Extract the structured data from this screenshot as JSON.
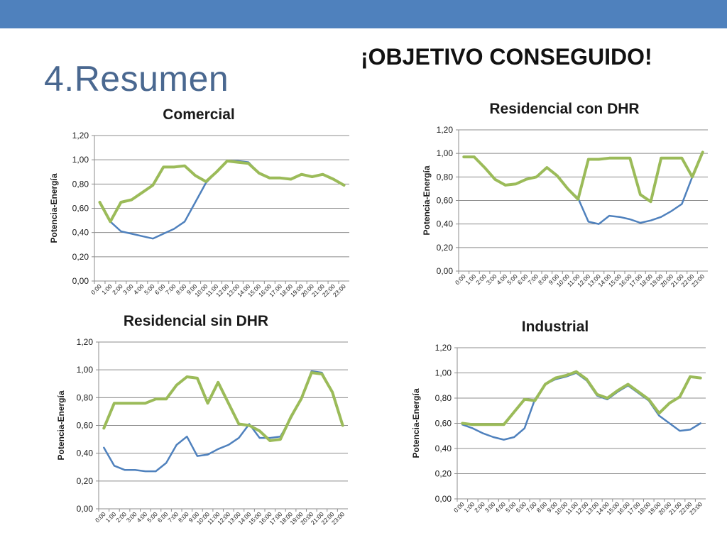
{
  "slide": {
    "title": "4.Resumen",
    "headline": "¡OBJETIVO CONSEGUIDO!"
  },
  "colors": {
    "header_bar": "#4f81bd",
    "series_blue": "#4f81bd",
    "series_green": "#9bbb59",
    "title_text": "#4a6890"
  },
  "chart_data": [
    {
      "id": "comercial",
      "type": "line",
      "title": "Comercial",
      "ylabel": "Potencia-Energía",
      "xlabel": "",
      "ylim": [
        0,
        1.2
      ],
      "yticks": [
        "0,00",
        "0,20",
        "0,40",
        "0,60",
        "0,80",
        "1,00",
        "1,20"
      ],
      "grid": true,
      "categories": [
        "0:00",
        "1:00",
        "2:00",
        "3:00",
        "4:00",
        "5:00",
        "6:00",
        "7:00",
        "8:00",
        "9:00",
        "10:00",
        "11:00",
        "12:00",
        "13:00",
        "14:00",
        "15:00",
        "16:00",
        "17:00",
        "18:00",
        "19:00",
        "20:00",
        "21:00",
        "22:00",
        "23:00"
      ],
      "series": [
        {
          "color": "#4f81bd",
          "values": [
            0.65,
            0.49,
            0.41,
            0.39,
            0.37,
            0.35,
            0.39,
            0.43,
            0.49,
            0.65,
            0.81,
            0.9,
            0.99,
            0.99,
            0.98,
            0.89,
            0.85,
            0.85,
            0.84,
            0.88,
            0.86,
            0.88,
            0.84,
            0.79
          ]
        },
        {
          "color": "#9bbb59",
          "values": [
            0.65,
            0.49,
            0.65,
            0.67,
            0.73,
            0.79,
            0.94,
            0.94,
            0.95,
            0.87,
            0.82,
            0.9,
            0.99,
            0.98,
            0.97,
            0.89,
            0.85,
            0.85,
            0.84,
            0.88,
            0.86,
            0.88,
            0.84,
            0.79
          ]
        }
      ]
    },
    {
      "id": "residencial-con-dhr",
      "type": "line",
      "title": "Residencial con DHR",
      "ylabel": "Potencia-Energía",
      "xlabel": "",
      "ylim": [
        0,
        1.2
      ],
      "yticks": [
        "0,00",
        "0,20",
        "0,40",
        "0,60",
        "0,80",
        "1,00",
        "1,20"
      ],
      "grid": true,
      "categories": [
        "0:00",
        "1:00",
        "2:00",
        "3:00",
        "4:00",
        "5:00",
        "6:00",
        "7:00",
        "8:00",
        "9:00",
        "10:00",
        "11:00",
        "12:00",
        "13:00",
        "14:00",
        "15:00",
        "16:00",
        "17:00",
        "18:00",
        "19:00",
        "20:00",
        "21:00",
        "22:00",
        "23:00"
      ],
      "series": [
        {
          "color": "#4f81bd",
          "values": [
            0.97,
            0.97,
            0.88,
            0.78,
            0.73,
            0.74,
            0.78,
            0.8,
            0.88,
            0.81,
            0.7,
            0.62,
            0.42,
            0.4,
            0.47,
            0.46,
            0.44,
            0.41,
            0.43,
            0.46,
            0.51,
            0.57,
            0.8,
            1.01
          ]
        },
        {
          "color": "#9bbb59",
          "values": [
            0.97,
            0.97,
            0.88,
            0.78,
            0.73,
            0.74,
            0.78,
            0.8,
            0.88,
            0.81,
            0.7,
            0.61,
            0.95,
            0.95,
            0.96,
            0.96,
            0.96,
            0.65,
            0.59,
            0.96,
            0.96,
            0.96,
            0.8,
            1.01
          ]
        }
      ]
    },
    {
      "id": "residencial-sin-dhr",
      "type": "line",
      "title": "Residencial sin DHR",
      "ylabel": "Potencia-Energía",
      "xlabel": "",
      "ylim": [
        0,
        1.2
      ],
      "yticks": [
        "0,00",
        "0,20",
        "0,40",
        "0,60",
        "0,80",
        "1,00",
        "1,20"
      ],
      "grid": true,
      "categories": [
        "0:00",
        "1:00",
        "2:00",
        "3:00",
        "4:00",
        "5:00",
        "6:00",
        "7:00",
        "8:00",
        "9:00",
        "10:00",
        "11:00",
        "12:00",
        "13:00",
        "14:00",
        "15:00",
        "16:00",
        "17:00",
        "18:00",
        "19:00",
        "20:00",
        "21:00",
        "22:00",
        "23:00"
      ],
      "series": [
        {
          "color": "#4f81bd",
          "values": [
            0.44,
            0.31,
            0.28,
            0.28,
            0.27,
            0.27,
            0.33,
            0.46,
            0.52,
            0.38,
            0.39,
            0.43,
            0.46,
            0.51,
            0.61,
            0.51,
            0.51,
            0.52,
            0.65,
            0.79,
            0.99,
            0.98,
            0.84,
            0.6
          ]
        },
        {
          "color": "#9bbb59",
          "values": [
            0.58,
            0.76,
            0.76,
            0.76,
            0.76,
            0.79,
            0.79,
            0.89,
            0.95,
            0.94,
            0.76,
            0.91,
            0.76,
            0.61,
            0.6,
            0.56,
            0.49,
            0.5,
            0.66,
            0.79,
            0.98,
            0.97,
            0.84,
            0.6
          ]
        }
      ]
    },
    {
      "id": "industrial",
      "type": "line",
      "title": "Industrial",
      "ylabel": "Potencia-Energía",
      "xlabel": "",
      "ylim": [
        0,
        1.2
      ],
      "yticks": [
        "0,00",
        "0,20",
        "0,40",
        "0,60",
        "0,80",
        "1,00",
        "1,20"
      ],
      "grid": true,
      "categories": [
        "0:00",
        "1:00",
        "2:00",
        "3:00",
        "4:00",
        "5:00",
        "6:00",
        "7:00",
        "8:00",
        "9:00",
        "10:00",
        "11:00",
        "12:00",
        "13:00",
        "14:00",
        "15:00",
        "16:00",
        "17:00",
        "18:00",
        "19:00",
        "20:00",
        "21:00",
        "22:00",
        "23:00"
      ],
      "series": [
        {
          "color": "#4f81bd",
          "values": [
            0.59,
            0.56,
            0.52,
            0.49,
            0.47,
            0.49,
            0.56,
            0.79,
            0.91,
            0.95,
            0.97,
            1.0,
            0.94,
            0.82,
            0.79,
            0.85,
            0.9,
            0.84,
            0.78,
            0.66,
            0.6,
            0.54,
            0.55,
            0.6
          ]
        },
        {
          "color": "#9bbb59",
          "values": [
            0.6,
            0.59,
            0.59,
            0.59,
            0.59,
            0.69,
            0.79,
            0.78,
            0.91,
            0.96,
            0.98,
            1.01,
            0.95,
            0.83,
            0.8,
            0.86,
            0.91,
            0.85,
            0.79,
            0.68,
            0.76,
            0.81,
            0.97,
            0.96
          ]
        }
      ]
    }
  ]
}
